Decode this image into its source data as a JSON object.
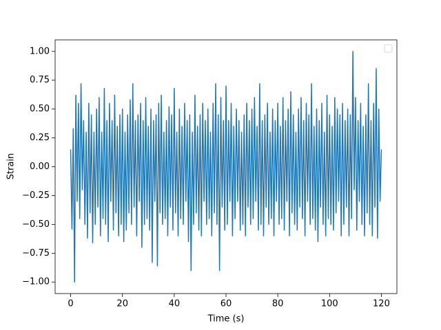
{
  "chart_data": {
    "type": "line",
    "xlabel": "Time (s)",
    "ylabel": "Strain",
    "x": [
      0,
      0.5,
      1,
      1.5,
      2,
      2.5,
      3,
      3.5,
      4,
      4.5,
      5,
      5.5,
      6,
      6.5,
      7,
      7.5,
      8,
      8.5,
      9,
      9.5,
      10,
      10.5,
      11,
      11.5,
      12,
      12.5,
      13,
      13.5,
      14,
      14.5,
      15,
      15.5,
      16,
      16.5,
      17,
      17.5,
      18,
      18.5,
      19,
      19.5,
      20,
      20.5,
      21,
      21.5,
      22,
      22.5,
      23,
      23.5,
      24,
      24.5,
      25,
      25.5,
      26,
      26.5,
      27,
      27.5,
      28,
      28.5,
      29,
      29.5,
      30,
      30.5,
      31,
      31.5,
      32,
      32.5,
      33,
      33.5,
      34,
      34.5,
      35,
      35.5,
      36,
      36.5,
      37,
      37.5,
      38,
      38.5,
      39,
      39.5,
      40,
      40.5,
      41,
      41.5,
      42,
      42.5,
      43,
      43.5,
      44,
      44.5,
      45,
      45.5,
      46,
      46.5,
      47,
      47.5,
      48,
      48.5,
      49,
      49.5,
      50,
      50.5,
      51,
      51.5,
      52,
      52.5,
      53,
      53.5,
      54,
      54.5,
      55,
      55.5,
      56,
      56.5,
      57,
      57.5,
      58,
      58.5,
      59,
      59.5,
      60,
      60.5,
      61,
      61.5,
      62,
      62.5,
      63,
      63.5,
      64,
      64.5,
      65,
      65.5,
      66,
      66.5,
      67,
      67.5,
      68,
      68.5,
      69,
      69.5,
      70,
      70.5,
      71,
      71.5,
      72,
      72.5,
      73,
      73.5,
      74,
      74.5,
      75,
      75.5,
      76,
      76.5,
      77,
      77.5,
      78,
      78.5,
      79,
      79.5,
      80,
      80.5,
      81,
      81.5,
      82,
      82.5,
      83,
      83.5,
      84,
      84.5,
      85,
      85.5,
      86,
      86.5,
      87,
      87.5,
      88,
      88.5,
      89,
      89.5,
      90,
      90.5,
      91,
      91.5,
      92,
      92.5,
      93,
      93.5,
      94,
      94.5,
      95,
      95.5,
      96,
      96.5,
      97,
      97.5,
      98,
      98.5,
      99,
      99.5,
      100,
      100.5,
      101,
      101.5,
      102,
      102.5,
      103,
      103.5,
      104,
      104.5,
      105,
      105.5,
      106,
      106.5,
      107,
      107.5,
      108,
      108.5,
      109,
      109.5,
      110,
      110.5,
      111,
      111.5,
      112,
      112.5,
      113,
      113.5,
      114,
      114.5,
      115,
      115.5,
      116,
      116.5,
      117,
      117.5,
      118,
      118.5,
      119,
      119.5,
      120
    ],
    "series": [
      {
        "color": "#1f77b4",
        "values": [
          0.15,
          -0.54,
          0.33,
          -1.0,
          0.62,
          -0.3,
          0.55,
          -0.45,
          0.72,
          -0.2,
          0.4,
          -0.5,
          0.3,
          -0.62,
          0.55,
          -0.4,
          0.45,
          -0.66,
          0.3,
          -0.5,
          0.5,
          -0.35,
          0.6,
          -0.6,
          0.3,
          -0.45,
          0.68,
          -0.5,
          0.4,
          -0.65,
          0.55,
          -0.3,
          0.4,
          -0.55,
          0.62,
          -0.4,
          0.35,
          -0.6,
          0.45,
          -0.5,
          0.5,
          -0.65,
          0.3,
          -0.55,
          0.45,
          -0.4,
          0.58,
          -0.5,
          0.72,
          -0.35,
          0.4,
          -0.6,
          0.45,
          -0.3,
          0.55,
          -0.7,
          0.4,
          -0.5,
          0.6,
          -0.45,
          0.35,
          -0.55,
          0.5,
          -0.83,
          0.4,
          -0.3,
          0.45,
          -0.86,
          0.55,
          -0.4,
          0.62,
          -0.5,
          0.3,
          -0.45,
          0.4,
          -0.6,
          0.52,
          -0.35,
          0.45,
          -0.55,
          0.68,
          -0.4,
          0.3,
          -0.6,
          0.5,
          -0.45,
          0.35,
          -0.5,
          0.55,
          -0.3,
          0.4,
          -0.65,
          0.45,
          -0.9,
          0.3,
          -0.5,
          0.62,
          -0.4,
          0.35,
          -0.55,
          0.45,
          -0.6,
          0.55,
          -0.3,
          0.4,
          -0.5,
          0.5,
          -0.45,
          0.3,
          -0.6,
          0.55,
          -0.4,
          0.72,
          -0.5,
          0.45,
          -0.9,
          0.6,
          -0.35,
          0.4,
          -0.55,
          0.7,
          -0.5,
          0.4,
          -0.3,
          0.55,
          -0.6,
          0.35,
          -0.45,
          0.5,
          -0.3,
          0.4,
          -0.55,
          0.3,
          -0.5,
          0.45,
          -0.6,
          0.55,
          -0.35,
          0.4,
          -0.5,
          0.5,
          -0.45,
          0.6,
          -0.3,
          0.35,
          -0.55,
          0.72,
          -0.5,
          0.4,
          -0.6,
          0.45,
          -0.35,
          0.55,
          -0.5,
          0.3,
          -0.45,
          0.5,
          -0.6,
          0.4,
          -0.3,
          0.55,
          -0.5,
          0.35,
          -0.45,
          0.6,
          -0.55,
          0.4,
          -0.3,
          0.5,
          -0.6,
          0.65,
          -0.4,
          0.45,
          -0.5,
          0.3,
          -0.55,
          0.5,
          -0.35,
          0.6,
          -0.45,
          0.4,
          -0.6,
          0.55,
          -0.3,
          0.45,
          -0.5,
          0.72,
          -0.45,
          0.35,
          -0.55,
          0.5,
          -0.65,
          0.4,
          -0.35,
          0.55,
          -0.5,
          0.3,
          -0.6,
          0.62,
          -0.45,
          0.45,
          -0.5,
          0.35,
          -0.55,
          0.6,
          -0.4,
          0.5,
          -0.3,
          0.45,
          -0.6,
          0.55,
          -0.5,
          0.4,
          -0.35,
          0.5,
          -0.6,
          0.45,
          -0.45,
          1.0,
          -0.2,
          0.6,
          -0.55,
          0.4,
          -0.3,
          0.55,
          -0.5,
          0.35,
          -0.6,
          0.45,
          -0.4,
          0.72,
          -0.5,
          0.4,
          -0.6,
          0.55,
          -0.35,
          0.85,
          -0.62,
          0.5,
          -0.3,
          0.15
        ]
      }
    ],
    "xlim": [
      -6,
      126
    ],
    "xticks": [
      0,
      20,
      40,
      60,
      80,
      100,
      120
    ],
    "ylim": [
      -1.1,
      1.1
    ],
    "yticks": [
      {
        "value": -1,
        "label": "−1.00"
      },
      {
        "value": -0.75,
        "label": "−0.75"
      },
      {
        "value": -0.5,
        "label": "−0.50"
      },
      {
        "value": -0.25,
        "label": "−0.25"
      },
      {
        "value": 0,
        "label": "0.00"
      },
      {
        "value": 0.25,
        "label": "0.25"
      },
      {
        "value": 0.5,
        "label": "0.50"
      },
      {
        "value": 0.75,
        "label": "0.75"
      },
      {
        "value": 1,
        "label": "1.00"
      }
    ],
    "grid": false,
    "legend": "upper right"
  }
}
